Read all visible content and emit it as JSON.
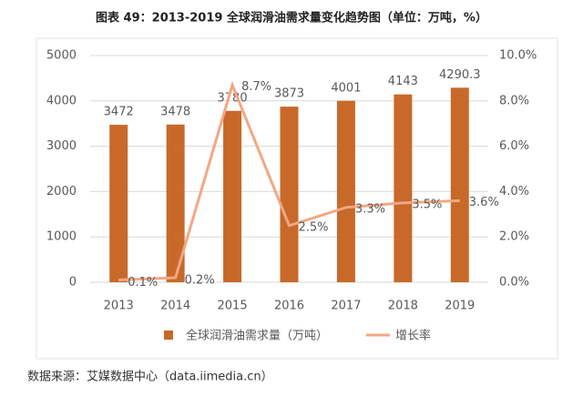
{
  "chart_data": {
    "type": "bar-line",
    "title": "图表 49：2013-2019 全球润滑油需求量变化趋势图（单位：万吨，%）",
    "source": "数据来源：艾媒数据中心（data.iimedia.cn）",
    "categories": [
      "2013",
      "2014",
      "2015",
      "2016",
      "2017",
      "2018",
      "2019"
    ],
    "series": [
      {
        "name": "全球润滑油需求量（万吨）",
        "type": "bar",
        "color": "#c8692a",
        "values": [
          3472,
          3478,
          3780,
          3873,
          4001,
          4143,
          4290.3
        ]
      },
      {
        "name": "增长率",
        "type": "line",
        "axis": "y2",
        "color": "#f2a783",
        "values": [
          0.1,
          0.2,
          8.7,
          2.5,
          3.3,
          3.5,
          3.6
        ],
        "value_labels": [
          "0.1%",
          "0.2%",
          "8.7%",
          "2.5%",
          "3.3%",
          "3.5%",
          "3.6%"
        ]
      }
    ],
    "ylim": [
      0,
      5000
    ],
    "yticks": [
      0,
      1000,
      2000,
      3000,
      4000,
      5000
    ],
    "y2lim": [
      0,
      10
    ],
    "y2ticks": [
      {
        "value": 0,
        "label": "0.0%"
      },
      {
        "value": 2,
        "label": "2.0%"
      },
      {
        "value": 4,
        "label": "4.0%"
      },
      {
        "value": 6,
        "label": "6.0%"
      },
      {
        "value": 8,
        "label": "8.0%"
      },
      {
        "value": 10,
        "label": "10.0%"
      }
    ],
    "grid": true
  }
}
